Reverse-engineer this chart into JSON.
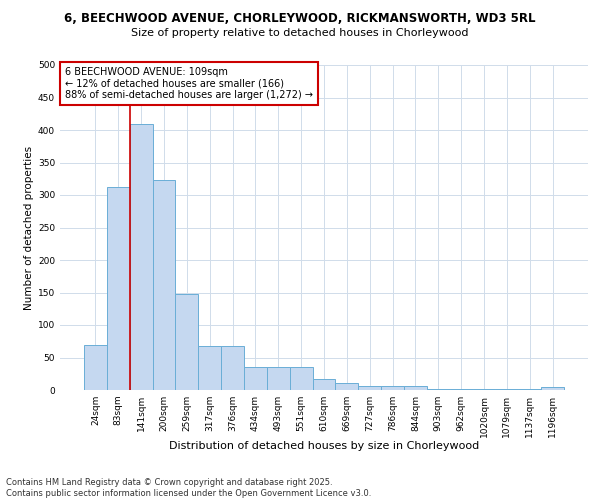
{
  "title1": "6, BEECHWOOD AVENUE, CHORLEYWOOD, RICKMANSWORTH, WD3 5RL",
  "title2": "Size of property relative to detached houses in Chorleywood",
  "xlabel": "Distribution of detached houses by size in Chorleywood",
  "ylabel": "Number of detached properties",
  "categories": [
    "24sqm",
    "83sqm",
    "141sqm",
    "200sqm",
    "259sqm",
    "317sqm",
    "376sqm",
    "434sqm",
    "493sqm",
    "551sqm",
    "610sqm",
    "669sqm",
    "727sqm",
    "786sqm",
    "844sqm",
    "903sqm",
    "962sqm",
    "1020sqm",
    "1079sqm",
    "1137sqm",
    "1196sqm"
  ],
  "values": [
    70,
    313,
    410,
    323,
    148,
    68,
    68,
    36,
    36,
    36,
    17,
    11,
    6,
    6,
    6,
    2,
    2,
    2,
    1,
    1,
    5
  ],
  "bar_color": "#c5d8f0",
  "bar_edge_color": "#6aaed6",
  "grid_color": "#d0dcea",
  "background_color": "#ffffff",
  "annotation_box_texts": [
    "6 BEECHWOOD AVENUE: 109sqm",
    "← 12% of detached houses are smaller (166)",
    "88% of semi-detached houses are larger (1,272) →"
  ],
  "annotation_box_color": "#ffffff",
  "annotation_box_edge_color": "#cc0000",
  "annotation_line_color": "#cc0000",
  "footer_text": "Contains HM Land Registry data © Crown copyright and database right 2025.\nContains public sector information licensed under the Open Government Licence v3.0.",
  "ylim": [
    0,
    500
  ],
  "yticks": [
    0,
    50,
    100,
    150,
    200,
    250,
    300,
    350,
    400,
    450,
    500
  ],
  "title1_fontsize": 8.5,
  "title2_fontsize": 8,
  "xlabel_fontsize": 8,
  "ylabel_fontsize": 7.5,
  "tick_fontsize": 6.5,
  "annotation_fontsize": 7,
  "footer_fontsize": 6
}
